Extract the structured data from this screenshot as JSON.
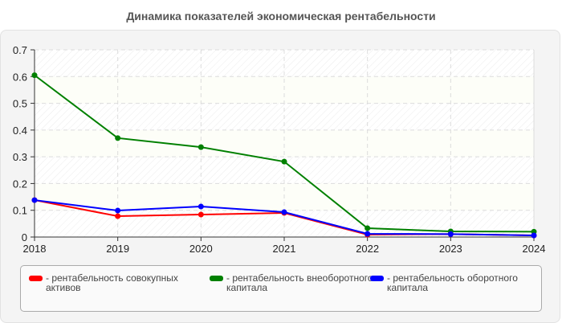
{
  "title": "Динамика показателей экономическая рентабельности",
  "legend": [
    {
      "label": "- рентабельность совокупных активов",
      "color": "#ff0000"
    },
    {
      "label": "- рентабельность внеоборотного капитала",
      "color": "#008000"
    },
    {
      "label": "- рентабельность оборотного капитала",
      "color": "#0000ff"
    }
  ],
  "chart_data": {
    "type": "line",
    "title": "Динамика показателей экономическая рентабельности",
    "xlabel": "",
    "ylabel": "",
    "x": [
      "2018",
      "2019",
      "2020",
      "2021",
      "2022",
      "2023",
      "2024"
    ],
    "yticks": [
      "0",
      "0.1",
      "0.2",
      "0.3",
      "0.4",
      "0.5",
      "0.6",
      "0.7"
    ],
    "ylim": [
      0,
      0.7
    ],
    "grid": true,
    "legend_position": "bottom",
    "series": [
      {
        "name": "рентабельность совокупных активов",
        "color": "#ff0000",
        "values": [
          0.138,
          0.078,
          0.084,
          0.09,
          0.009,
          0.011,
          0.006
        ]
      },
      {
        "name": "рентабельность внеоборотного капитала",
        "color": "#008000",
        "values": [
          0.605,
          0.37,
          0.336,
          0.282,
          0.033,
          0.021,
          0.02
        ]
      },
      {
        "name": "рентабельность оборотного капитала",
        "color": "#0000ff",
        "values": [
          0.138,
          0.099,
          0.114,
          0.093,
          0.012,
          0.011,
          0.006
        ]
      }
    ]
  }
}
